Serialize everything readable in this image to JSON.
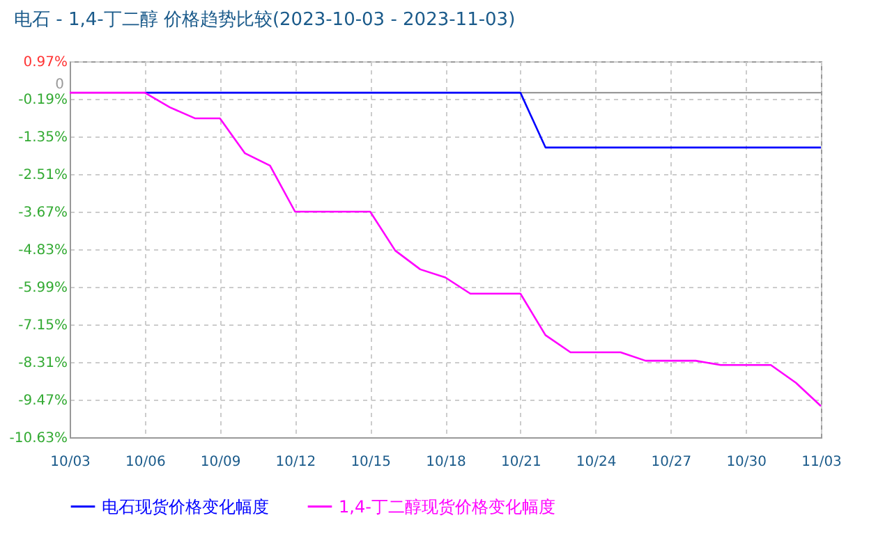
{
  "chart_data": {
    "type": "line",
    "title": "电石 - 1,4-丁二醇 价格趋势比较(2023-10-03 - 2023-11-03)",
    "categories": [
      "10/03",
      null,
      null,
      "10/06",
      null,
      null,
      "10/09",
      null,
      null,
      "10/12",
      null,
      null,
      "10/15",
      null,
      null,
      "10/18",
      null,
      null,
      "10/21",
      null,
      null,
      "10/24",
      null,
      null,
      "10/27",
      null,
      null,
      "10/30",
      null,
      null,
      "11/03"
    ],
    "series": [
      {
        "name": "电石现货价格变化幅度",
        "color": "#0000ff",
        "values": [
          null,
          null,
          null,
          0,
          0,
          0,
          0,
          0,
          0,
          0,
          0,
          0,
          0,
          0,
          0,
          0,
          0,
          0,
          0,
          -1.69,
          -1.69,
          -1.69,
          -1.69,
          -1.69,
          -1.69,
          -1.69,
          -1.69,
          -1.69,
          -1.69,
          -1.69,
          -1.69
        ]
      },
      {
        "name": "1,4-丁二醇现货价格变化幅度",
        "color": "#ff00ff",
        "values": [
          0,
          0,
          0,
          0,
          -0.45,
          -0.79,
          -0.79,
          -1.87,
          -2.25,
          -3.67,
          -3.67,
          -3.67,
          -3.67,
          -4.87,
          -5.45,
          -5.7,
          -6.2,
          -6.2,
          -6.2,
          -7.48,
          -8.01,
          -8.01,
          -8.01,
          -8.27,
          -8.27,
          -8.27,
          -8.4,
          -8.4,
          -8.4,
          -8.95,
          -9.67
        ]
      }
    ],
    "ylim": [
      -10.63,
      0.97
    ],
    "yticks": [
      {
        "value": 0.97,
        "label": "0.97%"
      },
      {
        "value": -0.19,
        "label": "-0.19%"
      },
      {
        "value": -1.35,
        "label": "-1.35%"
      },
      {
        "value": -2.51,
        "label": "-2.51%"
      },
      {
        "value": -3.67,
        "label": "-3.67%"
      },
      {
        "value": -4.83,
        "label": "-4.83%"
      },
      {
        "value": -5.99,
        "label": "-5.99%"
      },
      {
        "value": -7.15,
        "label": "-7.15%"
      },
      {
        "value": -8.31,
        "label": "-8.31%"
      },
      {
        "value": -9.47,
        "label": "-9.47%"
      },
      {
        "value": -10.63,
        "label": "-10.63%"
      }
    ],
    "ref_lines": [
      {
        "axis": "y",
        "value": 0,
        "label": "0",
        "color": "#999999"
      }
    ],
    "grid": true,
    "legend": "bottom",
    "marker": "none",
    "line_style": "solid"
  }
}
